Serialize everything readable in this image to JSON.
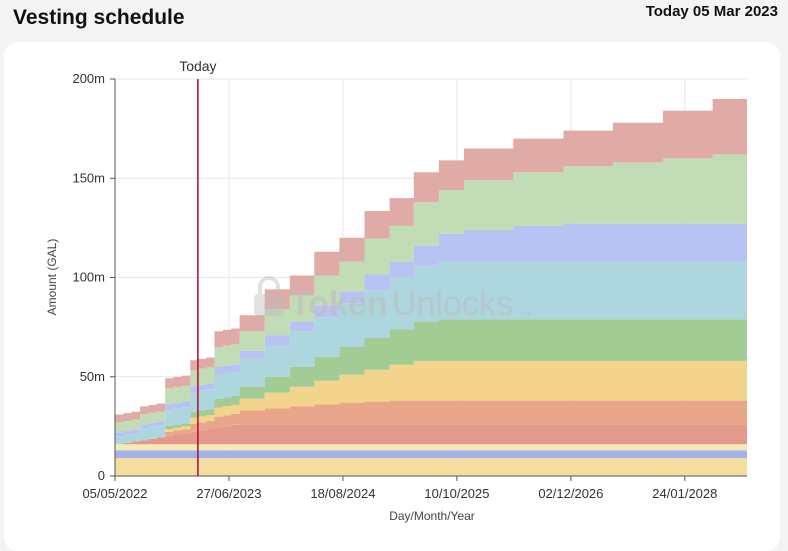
{
  "header": {
    "title": "Vesting schedule",
    "today_date": "Today 05 Mar 2023"
  },
  "watermark": {
    "text_token": "Token",
    "text_unlocks": "Unlocks",
    "dot": "."
  },
  "chart_data": {
    "type": "area",
    "stacked": true,
    "xlabel": "Day/Month/Year",
    "ylabel": "Amount (GAL)",
    "x_ticks": [
      "05/05/2022",
      "27/06/2023",
      "18/08/2024",
      "10/10/2025",
      "02/12/2026",
      "24/01/2028"
    ],
    "y_ticks": [
      "0",
      "50m",
      "100m",
      "150m",
      "200m"
    ],
    "ylim": [
      0,
      200000000
    ],
    "xlim": [
      "2022-05-05",
      "2028-09-08"
    ],
    "grid": true,
    "today_marker": {
      "label": "Today",
      "date": "2023-03-05"
    },
    "series": [
      {
        "color": "#f3dea0",
        "points": [
          [
            "2022-05-05",
            9000000
          ],
          [
            "2028-09-08",
            9000000
          ]
        ]
      },
      {
        "color": "#a3b2e8",
        "points": [
          [
            "2022-05-05",
            4000000
          ],
          [
            "2028-09-08",
            4000000
          ]
        ]
      },
      {
        "color": "#f6eab6",
        "points": [
          [
            "2022-05-05",
            3000000
          ],
          [
            "2028-09-08",
            3000000
          ]
        ]
      },
      {
        "color": "#e39a8c",
        "points": [
          [
            "2022-05-05",
            0
          ],
          [
            "2022-06-05",
            700000
          ],
          [
            "2022-07-05",
            1400000
          ],
          [
            "2022-08-05",
            2100000
          ],
          [
            "2022-09-05",
            2800000
          ],
          [
            "2022-10-05",
            3500000
          ],
          [
            "2022-11-05",
            4200000
          ],
          [
            "2022-12-05",
            4900000
          ],
          [
            "2023-01-05",
            5600000
          ],
          [
            "2023-02-05",
            6300000
          ],
          [
            "2023-03-05",
            7000000
          ],
          [
            "2023-04-05",
            7700000
          ],
          [
            "2023-05-05",
            8400000
          ],
          [
            "2023-06-05",
            9100000
          ],
          [
            "2023-07-05",
            9800000
          ],
          [
            "2023-08-05",
            10000000
          ],
          [
            "2028-09-08",
            10000000
          ]
        ]
      },
      {
        "color": "#eaa68a",
        "points": [
          [
            "2022-05-05",
            0
          ],
          [
            "2022-11-05",
            2000000
          ],
          [
            "2023-02-05",
            4000000
          ],
          [
            "2023-05-05",
            5500000
          ],
          [
            "2023-08-05",
            7000000
          ],
          [
            "2023-11-05",
            8000000
          ],
          [
            "2024-02-05",
            9000000
          ],
          [
            "2024-05-05",
            10000000
          ],
          [
            "2024-08-05",
            11000000
          ],
          [
            "2024-11-05",
            11500000
          ],
          [
            "2025-02-05",
            12000000
          ],
          [
            "2028-09-08",
            12000000
          ]
        ]
      },
      {
        "color": "#f2d48c",
        "points": [
          [
            "2022-05-05",
            0
          ],
          [
            "2022-11-05",
            1500000
          ],
          [
            "2023-02-05",
            3000000
          ],
          [
            "2023-05-05",
            4500000
          ],
          [
            "2023-08-05",
            6000000
          ],
          [
            "2023-11-05",
            8000000
          ],
          [
            "2024-02-05",
            10000000
          ],
          [
            "2024-05-05",
            12000000
          ],
          [
            "2024-08-05",
            14000000
          ],
          [
            "2024-11-05",
            16000000
          ],
          [
            "2025-02-05",
            18000000
          ],
          [
            "2025-05-05",
            20000000
          ],
          [
            "2028-09-08",
            20000000
          ]
        ]
      },
      {
        "color": "#a3cc94",
        "points": [
          [
            "2022-05-05",
            0
          ],
          [
            "2022-11-05",
            1500000
          ],
          [
            "2023-02-05",
            3000000
          ],
          [
            "2023-05-05",
            4500000
          ],
          [
            "2023-08-05",
            6000000
          ],
          [
            "2023-11-05",
            8000000
          ],
          [
            "2024-02-05",
            10000000
          ],
          [
            "2024-05-05",
            12000000
          ],
          [
            "2024-08-05",
            14000000
          ],
          [
            "2024-11-05",
            16000000
          ],
          [
            "2025-02-05",
            18000000
          ],
          [
            "2025-05-05",
            20000000
          ],
          [
            "2025-08-05",
            21000000
          ],
          [
            "2028-09-08",
            21000000
          ]
        ]
      },
      {
        "color": "#add6df",
        "points": [
          [
            "2022-05-05",
            4000000
          ],
          [
            "2022-08-05",
            6000000
          ],
          [
            "2022-11-05",
            8000000
          ],
          [
            "2023-02-05",
            10000000
          ],
          [
            "2023-05-05",
            12000000
          ],
          [
            "2023-08-05",
            14000000
          ],
          [
            "2023-11-05",
            16000000
          ],
          [
            "2024-02-05",
            18000000
          ],
          [
            "2024-05-05",
            20000000
          ],
          [
            "2024-08-05",
            22000000
          ],
          [
            "2024-11-05",
            24000000
          ],
          [
            "2025-02-05",
            26000000
          ],
          [
            "2025-05-05",
            28000000
          ],
          [
            "2025-08-05",
            29000000
          ],
          [
            "2028-09-08",
            29000000
          ]
        ]
      },
      {
        "color": "#b8c3f3",
        "points": [
          [
            "2022-05-05",
            2000000
          ],
          [
            "2022-11-05",
            3000000
          ],
          [
            "2023-05-05",
            4000000
          ],
          [
            "2023-11-05",
            5000000
          ],
          [
            "2024-05-05",
            6000000
          ],
          [
            "2024-11-05",
            8000000
          ],
          [
            "2025-05-05",
            10000000
          ],
          [
            "2025-08-05",
            14000000
          ],
          [
            "2025-11-05",
            16000000
          ],
          [
            "2026-05-05",
            18000000
          ],
          [
            "2026-11-05",
            19000000
          ],
          [
            "2028-09-08",
            20000000
          ]
        ]
      },
      {
        "color": "#c2dcb5",
        "points": [
          [
            "2022-05-05",
            5000000
          ],
          [
            "2022-11-05",
            8000000
          ],
          [
            "2023-05-05",
            10000000
          ],
          [
            "2023-11-05",
            13000000
          ],
          [
            "2024-05-05",
            15000000
          ],
          [
            "2024-11-05",
            18000000
          ],
          [
            "2025-05-05",
            22000000
          ],
          [
            "2025-11-05",
            25000000
          ],
          [
            "2026-05-05",
            27000000
          ],
          [
            "2026-11-05",
            29000000
          ],
          [
            "2027-05-05",
            31000000
          ],
          [
            "2027-11-05",
            33000000
          ],
          [
            "2028-05-05",
            35000000
          ],
          [
            "2028-09-08",
            40000000
          ]
        ]
      },
      {
        "color": "#e0aba7",
        "points": [
          [
            "2022-05-05",
            4000000
          ],
          [
            "2022-11-05",
            5000000
          ],
          [
            "2023-05-05",
            8000000
          ],
          [
            "2023-11-05",
            10000000
          ],
          [
            "2024-05-05",
            12000000
          ],
          [
            "2024-11-05",
            14000000
          ],
          [
            "2025-05-05",
            15000000
          ],
          [
            "2025-11-05",
            16000000
          ],
          [
            "2026-05-05",
            17000000
          ],
          [
            "2026-11-05",
            18000000
          ],
          [
            "2027-05-05",
            20000000
          ],
          [
            "2027-11-05",
            24000000
          ],
          [
            "2028-05-05",
            28000000
          ],
          [
            "2028-09-08",
            30000000
          ]
        ]
      }
    ]
  }
}
